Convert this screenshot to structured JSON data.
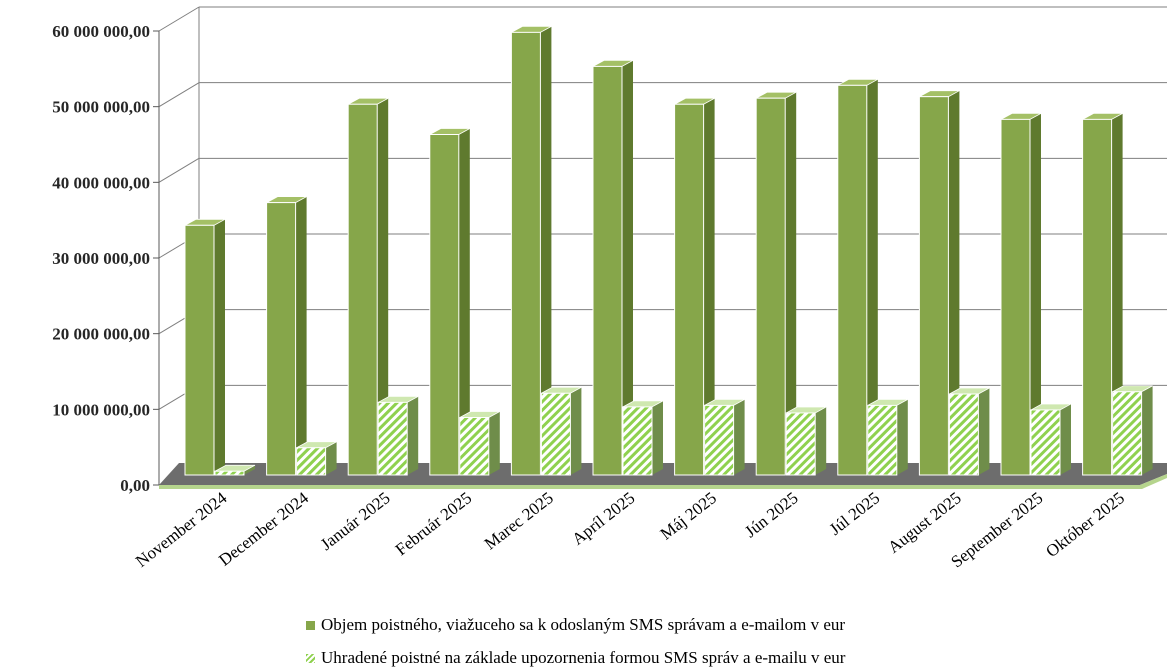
{
  "colors": {
    "series1_front": "#86a64a",
    "series1_top": "#a4c066",
    "series1_side": "#5f7a2e",
    "series2_stripe": "#8fd14f",
    "series2_side": "#6f8d4a",
    "floor": "#6d6d6d",
    "floor_edge": "#b5d48d",
    "grid": "#7f7f7f"
  },
  "chart_data": {
    "type": "bar",
    "style": "3d-clustered-column",
    "categories": [
      "November 2024",
      "December 2024",
      "Január 2025",
      "Február 2025",
      "Marec 2025",
      "Apríl 2025",
      "Máj 2025",
      "Jún 2025",
      "Júl 2025",
      "August 2025",
      "September 2025",
      "Október 2025"
    ],
    "series": [
      {
        "name": "Objem poistného, viažuceho sa k odoslaným SMS správam a e-mailom v eur",
        "fill": "solid",
        "values": [
          33000000,
          36000000,
          49000000,
          45000000,
          58500000,
          54000000,
          49000000,
          49800000,
          51500000,
          50000000,
          47000000,
          47000000
        ]
      },
      {
        "name": "Uhradené poistné na základe upozornenia formou SMS správ a e-mailu v eur",
        "fill": "hatched",
        "values": [
          500000,
          3600000,
          9600000,
          7600000,
          10800000,
          9000000,
          9200000,
          8200000,
          9200000,
          10700000,
          8600000,
          11000000
        ]
      }
    ],
    "yticks": [
      "0,00",
      "10 000 000,00",
      "20 000 000,00",
      "30 000 000,00",
      "40 000 000,00",
      "50 000 000,00",
      "60 000 000,00"
    ],
    "ylim": [
      0,
      60000000
    ],
    "grid": true,
    "legend_position": "bottom"
  }
}
